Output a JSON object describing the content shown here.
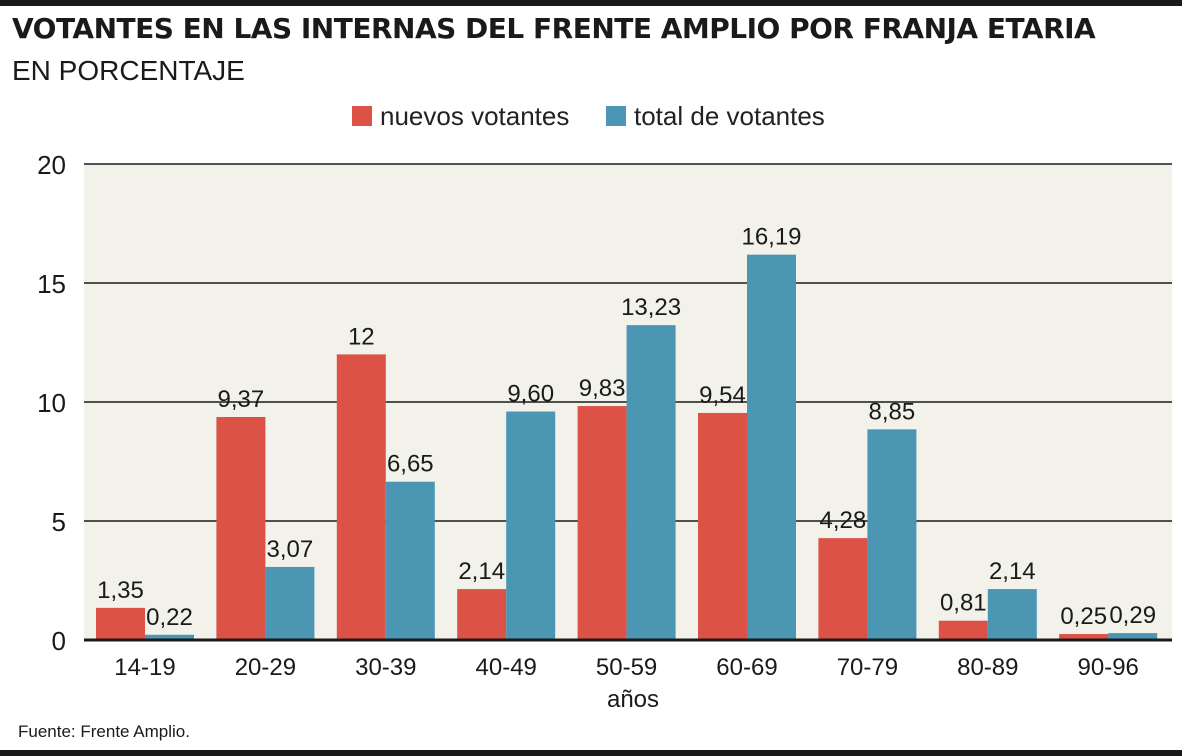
{
  "header": {
    "title": "VOTANTES EN LAS INTERNAS DEL FRENTE AMPLIO POR FRANJA ETARIA",
    "subtitle": "EN PORCENTAJE"
  },
  "footer": {
    "source": "Fuente: Frente Amplio."
  },
  "chart_data": {
    "type": "bar",
    "title": "VOTANTES EN LAS INTERNAS DEL FRENTE AMPLIO POR FRANJA ETARIA",
    "subtitle": "EN PORCENTAJE",
    "xlabel": "años",
    "ylabel": "",
    "ylim": [
      0,
      20
    ],
    "yticks": [
      "0",
      "5",
      "10",
      "15",
      "20"
    ],
    "ytick_values": [
      0,
      5,
      10,
      15,
      20
    ],
    "grid": true,
    "legend_position": "top-center",
    "categories": [
      "14-19",
      "20-29",
      "30-39",
      "40-49",
      "50-59",
      "60-69",
      "70-79",
      "80-89",
      "90-96"
    ],
    "series": [
      {
        "name": "nuevos votantes",
        "color": "#dd5246",
        "values": [
          1.35,
          9.37,
          12,
          2.14,
          9.83,
          9.54,
          4.28,
          0.81,
          0.25
        ],
        "labels": [
          "1,35",
          "9,37",
          "12",
          "2,14",
          "9,83",
          "9,54",
          "4,28",
          "0,81",
          "0,25"
        ]
      },
      {
        "name": "total de votantes",
        "color": "#4b96b3",
        "values": [
          0.22,
          3.07,
          6.65,
          9.6,
          13.23,
          16.19,
          8.85,
          2.14,
          0.29
        ],
        "labels": [
          "0,22",
          "3,07",
          "6,65",
          "9,60",
          "13,23",
          "16,19",
          "8,85",
          "2,14",
          "0,29"
        ]
      }
    ],
    "plot_background": "#f2f1ea",
    "gridline_color": "#1a1a1a"
  }
}
